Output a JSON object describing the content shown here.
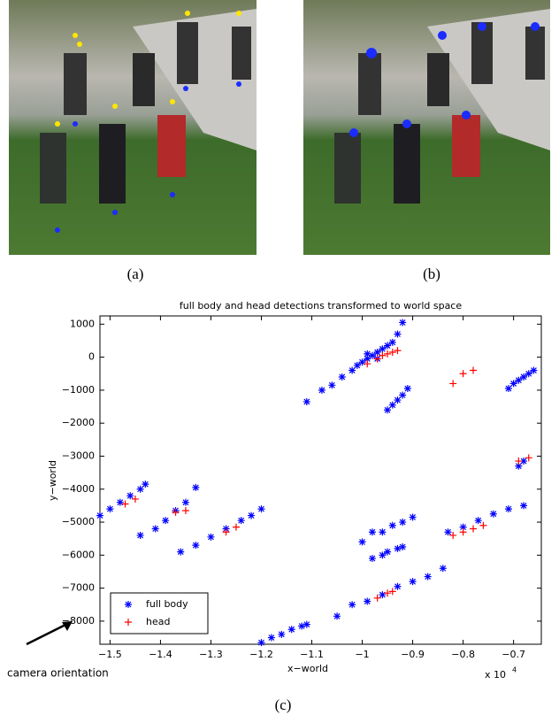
{
  "panel_captions": [
    "(a)",
    "(b)",
    "(c)"
  ],
  "chart_data": {
    "type": "scatter",
    "title": "full body and head detections transformed to world space",
    "xlabel": "x−world",
    "ylabel": "y−world",
    "x_offset_label": "x 10",
    "x_offset_exponent": "4",
    "annotation": "camera orientation",
    "xlim": [
      -1.52,
      -0.645
    ],
    "ylim": [
      -8700,
      1250
    ],
    "xticks": [
      {
        "value": -1.5,
        "label": "−1.5"
      },
      {
        "value": -1.4,
        "label": "−1.4"
      },
      {
        "value": -1.3,
        "label": "−1.3"
      },
      {
        "value": -1.2,
        "label": "−1.2"
      },
      {
        "value": -1.1,
        "label": "−1.1"
      },
      {
        "value": -1,
        "label": "−1"
      },
      {
        "value": -0.9,
        "label": "−0.9"
      },
      {
        "value": -0.8,
        "label": "−0.8"
      },
      {
        "value": -0.7,
        "label": "−0.7"
      }
    ],
    "yticks": [
      1000,
      0,
      {
        "value": -1000,
        "label": "−1000"
      },
      {
        "value": -2000,
        "label": "−2000"
      },
      {
        "value": -3000,
        "label": "−3000"
      },
      {
        "value": -4000,
        "label": "−4000"
      },
      {
        "value": -5000,
        "label": "−5000"
      },
      {
        "value": -6000,
        "label": "−6000"
      },
      {
        "value": -7000,
        "label": "−7000"
      },
      {
        "value": -8000,
        "label": "−8000"
      }
    ],
    "legend": "lower left",
    "series": [
      {
        "name": "full body",
        "color": "#0000ff",
        "marker": "asterisk",
        "x": [
          -1.11,
          -1.08,
          -1.06,
          -1.04,
          -1.02,
          -1.01,
          -1.0,
          -0.99,
          -0.98,
          -0.97,
          -0.96,
          -0.95,
          -0.94,
          -0.93,
          -0.92,
          -0.99,
          -0.97,
          -0.95,
          -0.94,
          -0.93,
          -0.92,
          -0.91,
          -0.71,
          -0.7,
          -0.69,
          -0.68,
          -0.67,
          -0.66,
          -1.52,
          -1.5,
          -1.48,
          -1.46,
          -1.44,
          -1.43,
          -1.44,
          -1.41,
          -1.39,
          -1.37,
          -1.35,
          -1.33,
          -1.36,
          -1.33,
          -1.3,
          -1.27,
          -1.24,
          -1.22,
          -1.2,
          -1.2,
          -1.18,
          -1.16,
          -1.14,
          -1.12,
          -1.11,
          -1.05,
          -1.02,
          -0.99,
          -0.96,
          -0.93,
          -0.9,
          -0.87,
          -0.84,
          -1.0,
          -0.98,
          -0.96,
          -0.94,
          -0.92,
          -0.9,
          -0.98,
          -0.96,
          -0.95,
          -0.93,
          -0.92,
          -0.83,
          -0.8,
          -0.77,
          -0.74,
          -0.71,
          -0.68,
          -0.69,
          -0.68
        ],
        "values": [
          -1350,
          -1000,
          -850,
          -600,
          -400,
          -250,
          -150,
          -50,
          50,
          150,
          250,
          350,
          450,
          700,
          1050,
          100,
          -50,
          -1600,
          -1450,
          -1300,
          -1150,
          -950,
          -950,
          -800,
          -700,
          -600,
          -500,
          -400,
          -4800,
          -4600,
          -4400,
          -4200,
          -4000,
          -3850,
          -5400,
          -5200,
          -4950,
          -4650,
          -4400,
          -3950,
          -5900,
          -5700,
          -5450,
          -5200,
          -4950,
          -4800,
          -4600,
          -8650,
          -8500,
          -8400,
          -8250,
          -8150,
          -8100,
          -7850,
          -7500,
          -7400,
          -7200,
          -6950,
          -6800,
          -6650,
          -6400,
          -5600,
          -5300,
          -5300,
          -5100,
          -5000,
          -4850,
          -6100,
          -6000,
          -5900,
          -5800,
          -5750,
          -5300,
          -5150,
          -4950,
          -4750,
          -4600,
          -4500,
          -3300,
          -3150
        ]
      },
      {
        "name": "head",
        "color": "#ff0000",
        "marker": "plus",
        "x": [
          -0.99,
          -0.97,
          -0.96,
          -0.95,
          -0.94,
          -0.93,
          -0.82,
          -0.8,
          -0.78,
          -1.47,
          -1.45,
          -1.37,
          -1.35,
          -1.27,
          -1.25,
          -0.82,
          -0.8,
          -0.78,
          -0.76,
          -0.97,
          -0.95,
          -0.94,
          -0.69,
          -0.67
        ],
        "values": [
          -200,
          -50,
          50,
          100,
          150,
          200,
          -800,
          -500,
          -400,
          -4450,
          -4300,
          -4700,
          -4650,
          -5300,
          -5150,
          -5400,
          -5300,
          -5200,
          -5100,
          -7300,
          -7150,
          -7100,
          -3150,
          -3050
        ]
      }
    ]
  }
}
